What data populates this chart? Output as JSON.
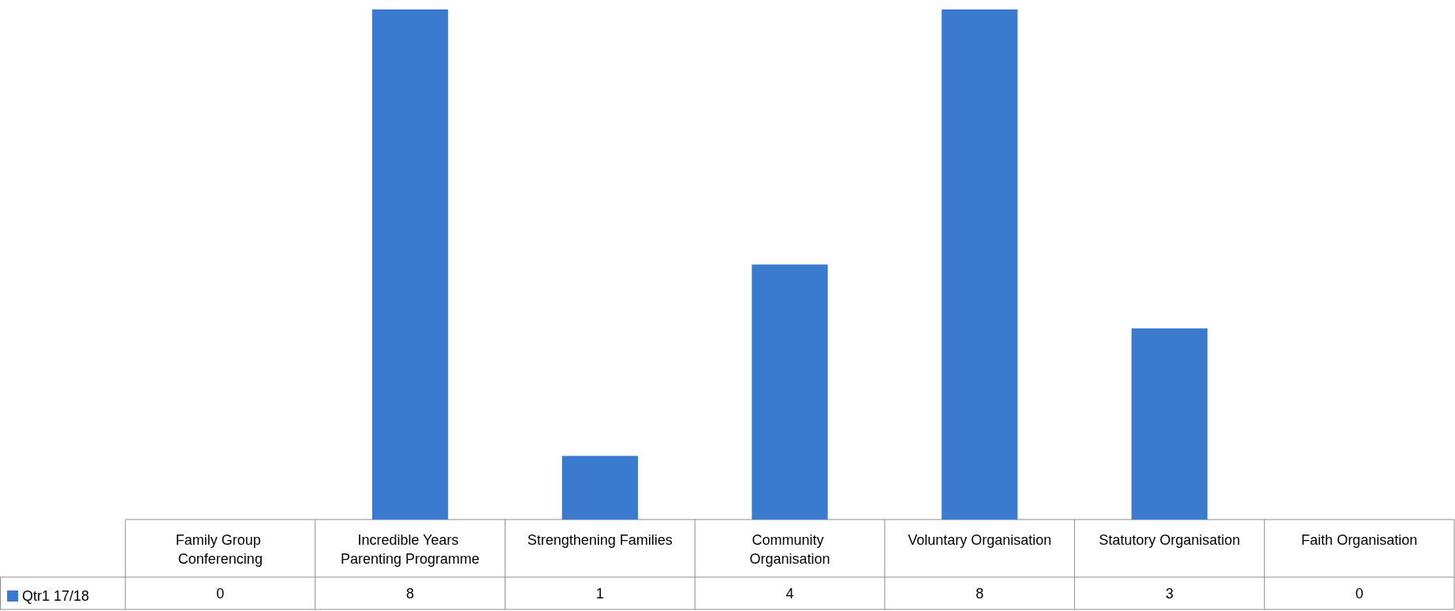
{
  "chart_data": {
    "type": "bar",
    "categories": [
      "Family Group Conferencing",
      "Incredible Years Parenting Programme",
      "Strengthening Families",
      "Community Organisation",
      "Voluntary Organisation",
      "Statutory Organisation",
      "Faith Organisation"
    ],
    "series": [
      {
        "name": "Qtr1 17/18",
        "color": "#3a7bd0",
        "values": [
          0,
          8,
          1,
          4,
          8,
          3,
          0
        ]
      }
    ],
    "data_labels": true,
    "legend": "bottom left"
  }
}
